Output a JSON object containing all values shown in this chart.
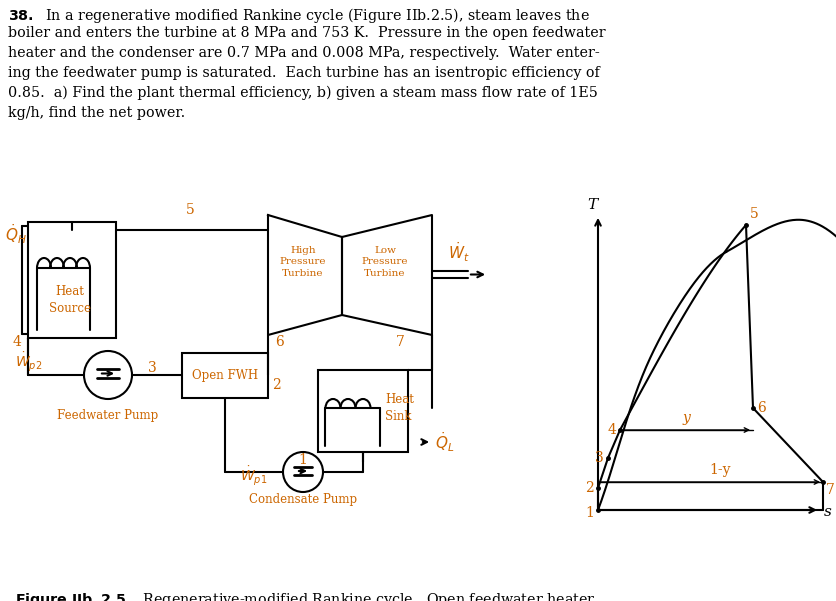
{
  "bg_color": "#ffffff",
  "text_color": "#000000",
  "orange_color": "#cc6600",
  "problem_lines": [
    "\\textbf{38.}  In a regenerative modified Rankine cycle (Figure IIb.2.5), steam leaves the",
    "boiler and enters the turbine at 8 MPa and 753 K.  Pressure in the open feedwater",
    "heater and the condenser are 0.7 MPa and 0.008 MPa, respectively.  Water enter-",
    "ing the feedwater pump is saturated.  Each turbine has an isentropic efficiency of",
    "0.85.  a) Find the plant thermal efficiency, b) given a steam mass flow rate of 1E5",
    "kg/h, find the net power."
  ],
  "caption": "Regenerative-modified Rankine cycle.  Open feedwater heater."
}
